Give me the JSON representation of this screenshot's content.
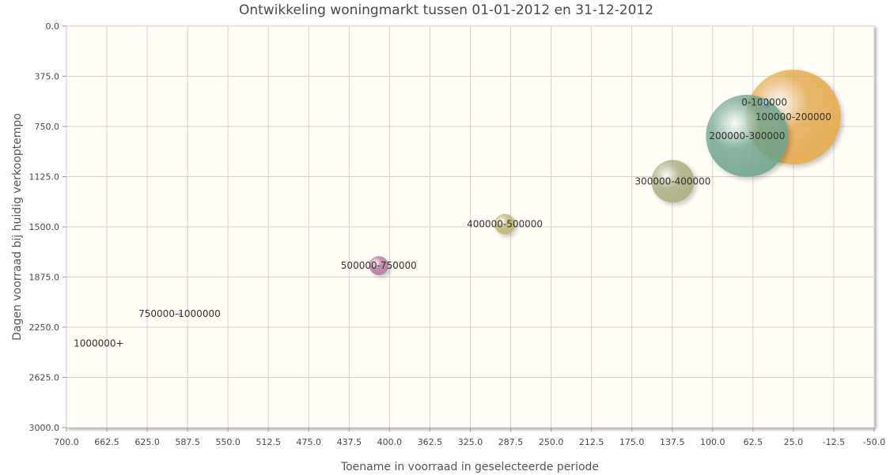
{
  "chart_data": {
    "type": "scatter",
    "title": "Ontwikkeling woningmarkt tussen 01-01-2012 en 31-12-2012",
    "xlabel": "Toename in voorraad in geselecteerde periode",
    "ylabel": "Dagen voorraad bij huidig verkooptempo",
    "xlim": [
      700,
      -50
    ],
    "ylim": [
      0,
      3000
    ],
    "x_ticks": [
      "700.0",
      "662.5",
      "625.0",
      "587.5",
      "550.0",
      "512.5",
      "475.0",
      "437.5",
      "400.0",
      "362.5",
      "325.0",
      "287.5",
      "250.0",
      "212.5",
      "175.0",
      "137.5",
      "100.0",
      "62.5",
      "25.0",
      "-12.5",
      "-50.0"
    ],
    "y_ticks": [
      "0.0",
      "375.0",
      "750.0",
      "1125.0",
      "1500.0",
      "1875.0",
      "2250.0",
      "2625.0",
      "3000.0"
    ],
    "grid": true,
    "series": [
      {
        "name": "0-100000",
        "x": 52,
        "y": 570,
        "size": 4,
        "color": "#8fd3e6"
      },
      {
        "name": "100000-200000",
        "x": 25,
        "y": 680,
        "size": 60,
        "color": "#e8a94a"
      },
      {
        "name": "200000-300000",
        "x": 68,
        "y": 820,
        "size": 52,
        "color": "#6fa58f"
      },
      {
        "name": "300000-400000",
        "x": 137,
        "y": 1160,
        "size": 27,
        "color": "#a8ad7c"
      },
      {
        "name": "400000-500000",
        "x": 293,
        "y": 1480,
        "size": 13,
        "color": "#bdb56a"
      },
      {
        "name": "500000-750000",
        "x": 410,
        "y": 1790,
        "size": 12,
        "color": "#b5749f"
      },
      {
        "name": "750000-1000000",
        "x": 595,
        "y": 2150,
        "size": 2,
        "color": "#8f8fd6"
      },
      {
        "name": "1000000+",
        "x": 670,
        "y": 2370,
        "size": 0,
        "color": "#c9b86a"
      }
    ]
  }
}
